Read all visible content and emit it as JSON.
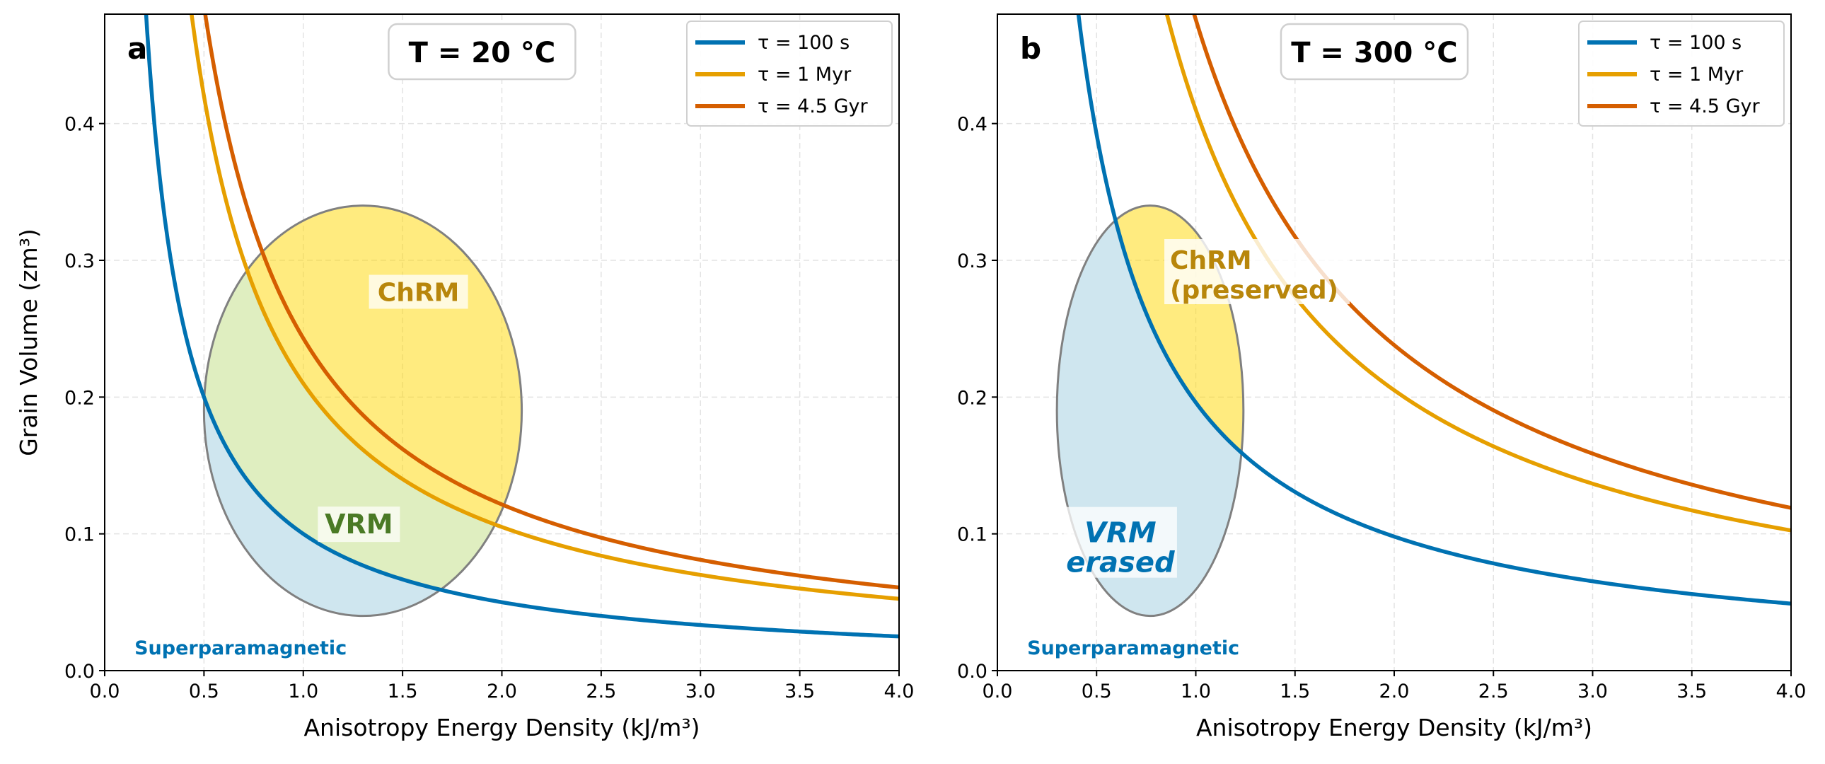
{
  "colors": {
    "tau_100s": "#0072b2",
    "tau_1myr": "#e69f00",
    "tau_4_5gyr": "#d55e00",
    "vrm_fill": "#add8e6",
    "chrm_fill": "#ffd700",
    "overlap_fill": "#dfeec0",
    "chrm_text": "#b8860b",
    "vrm_text_a": "#4a7a25",
    "vrm_text_b": "#0072b2",
    "ellipse_edge": "#808080"
  },
  "chart_data": [
    {
      "type": "line",
      "panel_label": "a",
      "title": "T = 20 °C",
      "xlabel": "Anisotropy Energy Density (kJ/m³)",
      "ylabel": "Grain Volume (zm³)",
      "xlim": [
        0,
        4
      ],
      "ylim": [
        0,
        0.48
      ],
      "xticks": [
        "0.0",
        "0.5",
        "1.0",
        "1.5",
        "2.0",
        "2.5",
        "3.0",
        "3.5",
        "4.0"
      ],
      "yticks": [
        "0.0",
        "0.1",
        "0.2",
        "0.3",
        "0.4"
      ],
      "grid": true,
      "legend_placement": "top-right",
      "series": [
        {
          "name": "τ = 100 s",
          "formula": "V = 0.1 / K",
          "coef": 0.1,
          "color_key": "tau_100s"
        },
        {
          "name": "τ = 1 Myr",
          "formula": "V = 0.21 / K",
          "coef": 0.21,
          "color_key": "tau_1myr"
        },
        {
          "name": "τ = 4.5 Gyr",
          "formula": "V = 0.243 / K",
          "coef": 0.243,
          "color_key": "tau_4_5gyr"
        }
      ],
      "ellipse": {
        "center": [
          1.3,
          0.19
        ],
        "half_width": 0.8,
        "half_height": 0.15
      },
      "annotations": {
        "chrm": "ChRM",
        "vrm": [
          "VRM"
        ],
        "sp": "Superparamagnetic"
      }
    },
    {
      "type": "line",
      "panel_label": "b",
      "title": "T = 300 °C",
      "xlabel": "Anisotropy Energy Density (kJ/m³)",
      "ylabel": "",
      "xlim": [
        0,
        4
      ],
      "ylim": [
        0,
        0.48
      ],
      "xticks": [
        "0.0",
        "0.5",
        "1.0",
        "1.5",
        "2.0",
        "2.5",
        "3.0",
        "3.5",
        "4.0"
      ],
      "yticks": [
        "0.0",
        "0.1",
        "0.2",
        "0.3",
        "0.4"
      ],
      "grid": true,
      "legend_placement": "top-right",
      "series": [
        {
          "name": "τ = 100 s",
          "formula": "V = 0.196 / K",
          "coef": 0.196,
          "color_key": "tau_100s"
        },
        {
          "name": "τ = 1 Myr",
          "formula": "V = 0.41 / K",
          "coef": 0.41,
          "color_key": "tau_1myr"
        },
        {
          "name": "τ = 4.5 Gyr",
          "formula": "V = 0.476 / K",
          "coef": 0.476,
          "color_key": "tau_4_5gyr"
        }
      ],
      "ellipse": {
        "center": [
          0.77,
          0.19
        ],
        "half_width": 0.47,
        "half_height": 0.15
      },
      "annotations": {
        "chrm": "ChRM\n(preserved)",
        "vrm": [
          "VRM",
          "erased"
        ],
        "sp": "Superparamagnetic"
      }
    }
  ]
}
